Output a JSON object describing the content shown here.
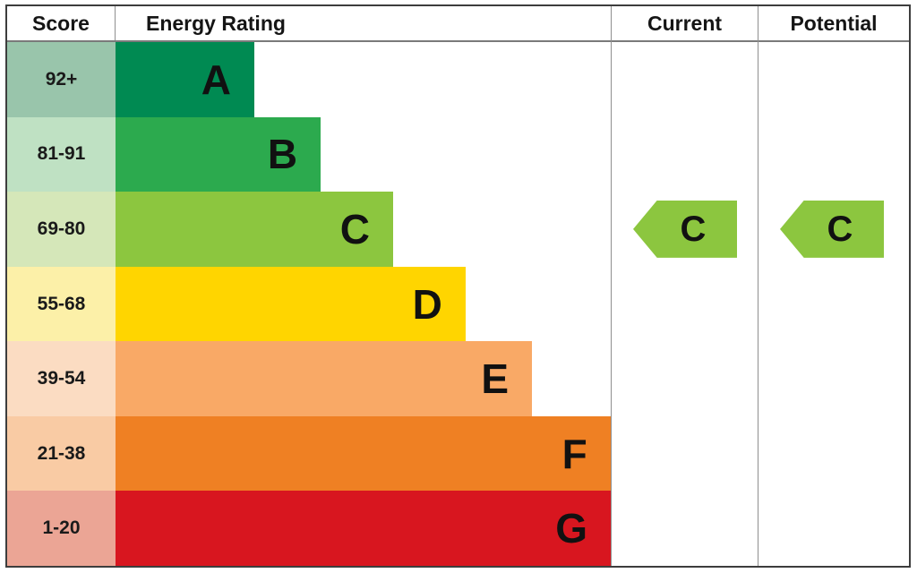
{
  "header": {
    "score_label": "Score",
    "rating_label": "Energy Rating",
    "current_label": "Current",
    "potential_label": "Potential"
  },
  "chart_data": {
    "type": "bar",
    "title": "Energy Rating",
    "categories": [
      "92+",
      "81-91",
      "69-80",
      "55-68",
      "39-54",
      "21-38",
      "1-20"
    ],
    "bands": [
      {
        "score": "92+",
        "letter": "A",
        "color": "#008a52",
        "score_tint": "#99c5ab",
        "bar_width_pct": 23
      },
      {
        "score": "81-91",
        "letter": "B",
        "color": "#2caa4e",
        "score_tint": "#bfe1c3",
        "bar_width_pct": 34
      },
      {
        "score": "69-80",
        "letter": "C",
        "color": "#8cc63f",
        "score_tint": "#d5e7b9",
        "bar_width_pct": 46
      },
      {
        "score": "55-68",
        "letter": "D",
        "color": "#ffd500",
        "score_tint": "#fcf0a8",
        "bar_width_pct": 58
      },
      {
        "score": "39-54",
        "letter": "E",
        "color": "#f9a966",
        "score_tint": "#fbdcc2",
        "bar_width_pct": 69
      },
      {
        "score": "21-38",
        "letter": "F",
        "color": "#ef8023",
        "score_tint": "#f9cba4",
        "bar_width_pct": 82
      },
      {
        "score": "1-20",
        "letter": "G",
        "color": "#d8161f",
        "score_tint": "#eba595",
        "bar_width_pct": 94
      }
    ],
    "current": {
      "letter": "C",
      "band": "69-80",
      "band_index": 2,
      "color": "#8cc63f"
    },
    "potential": {
      "letter": "C",
      "band": "69-80",
      "band_index": 2,
      "color": "#8cc63f"
    }
  }
}
